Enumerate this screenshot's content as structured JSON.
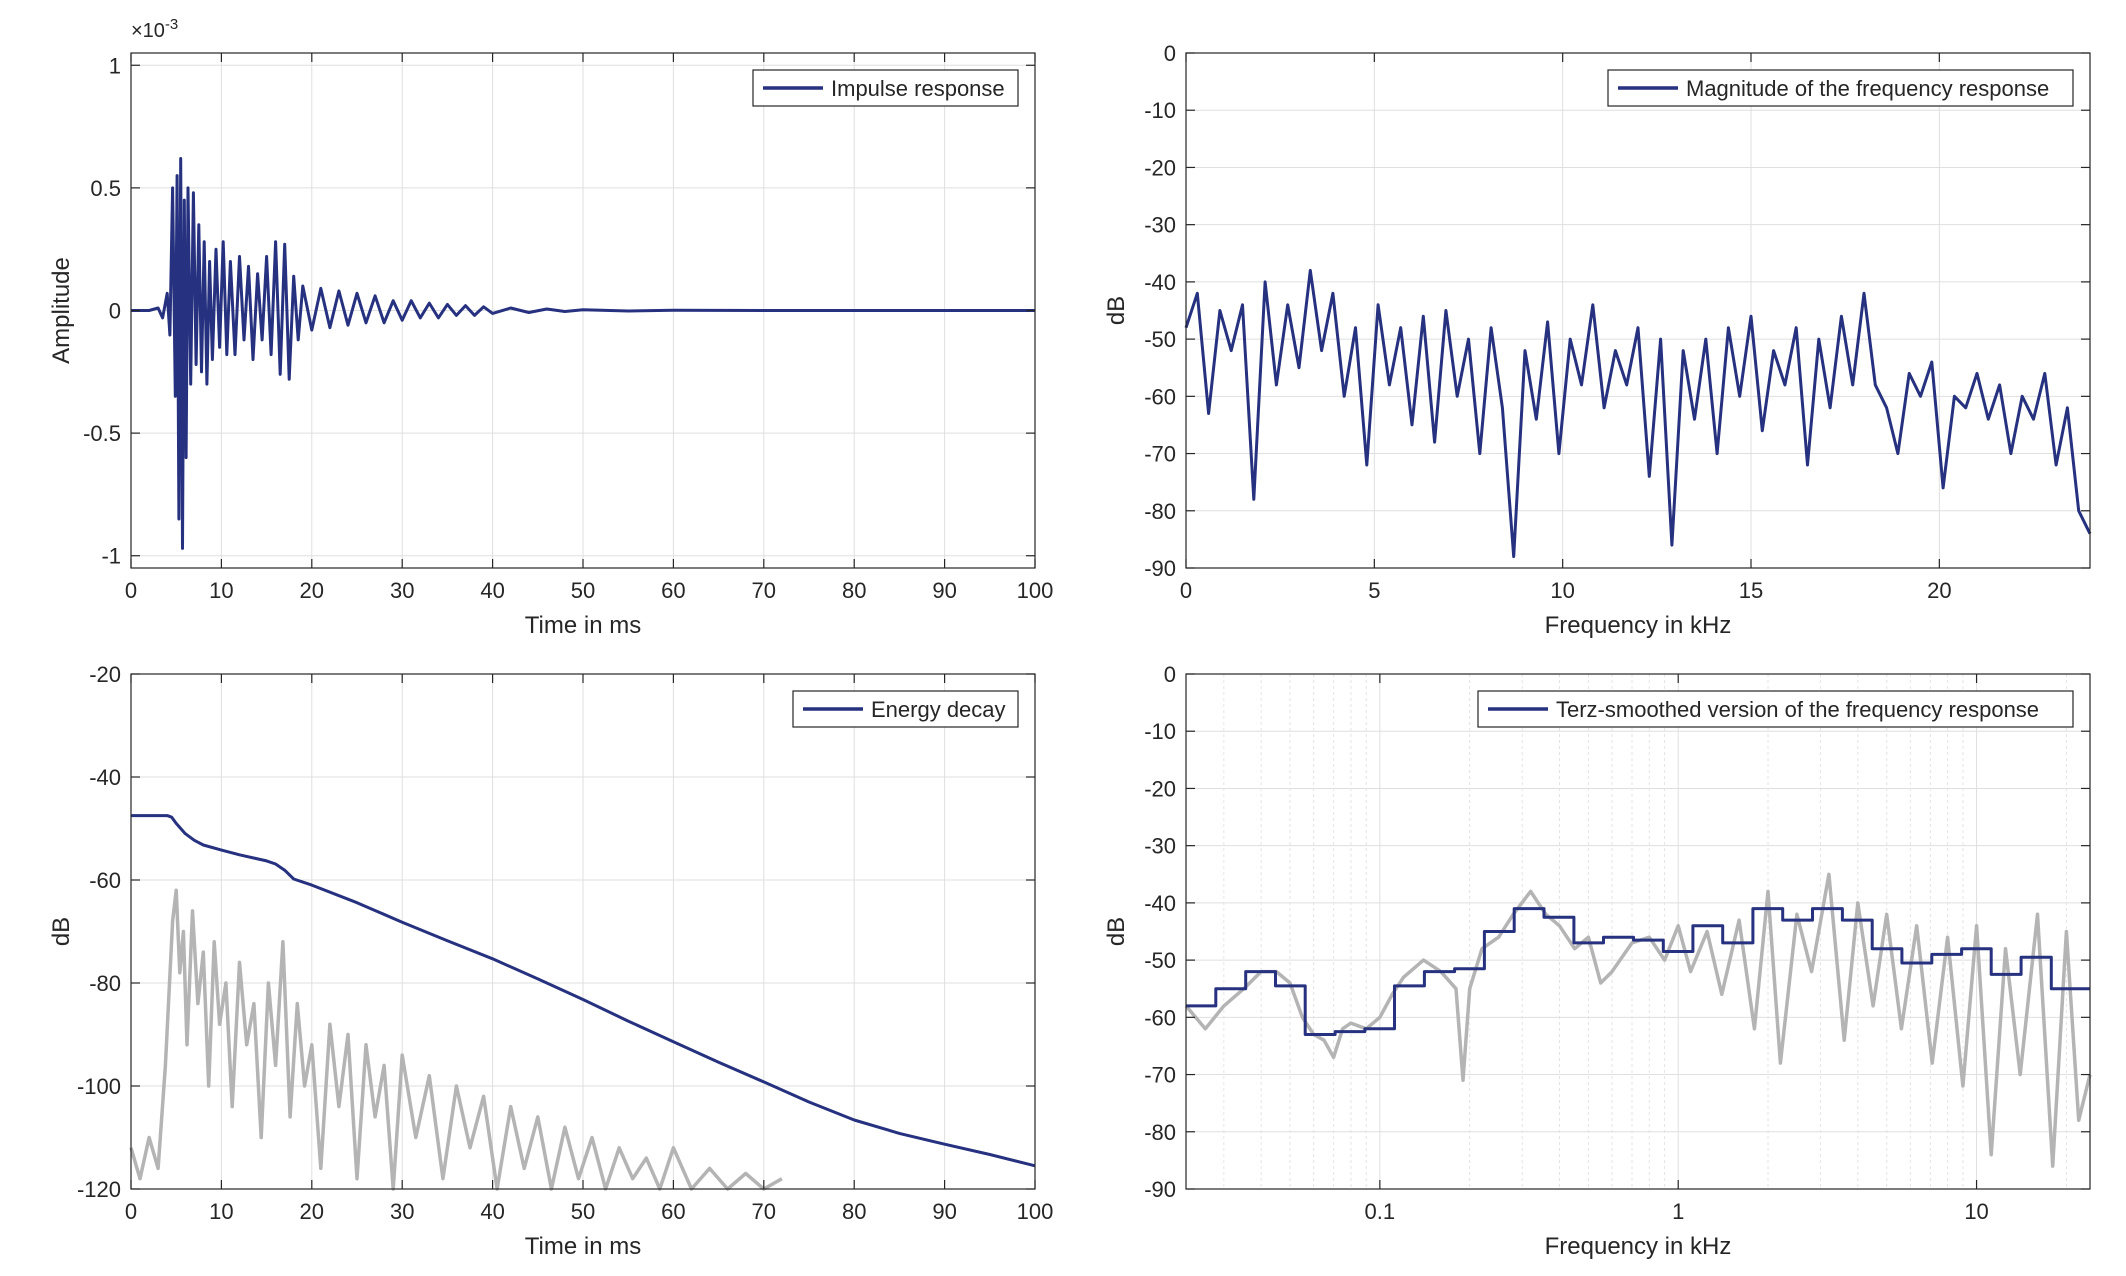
{
  "chart_data": [
    {
      "id": "impulse",
      "type": "line",
      "xlabel": "Time in ms",
      "ylabel": "Amplitude",
      "exponent_label": "×10",
      "exponent_power": "-3",
      "xlim": [
        0,
        100
      ],
      "ylim": [
        -1.05,
        1.05
      ],
      "xticks": [
        0,
        10,
        20,
        30,
        40,
        50,
        60,
        70,
        80,
        90,
        100
      ],
      "xtick_labels": [
        "0",
        "10",
        "20",
        "30",
        "40",
        "50",
        "60",
        "70",
        "80",
        "90",
        "100"
      ],
      "yticks": [
        1,
        0.5,
        0,
        -0.5,
        -1
      ],
      "ytick_labels": [
        "1",
        "0.5",
        "0",
        "-0.5",
        "-1"
      ],
      "grid": true,
      "legend_position": "top-right",
      "series": [
        {
          "name": "Impulse response",
          "color": "#26317f",
          "x": [
            0,
            1,
            2,
            3,
            3.5,
            4,
            4.3,
            4.6,
            4.9,
            5.1,
            5.3,
            5.5,
            5.7,
            5.9,
            6.1,
            6.3,
            6.6,
            6.9,
            7.2,
            7.5,
            7.8,
            8.1,
            8.4,
            8.7,
            9.0,
            9.4,
            9.8,
            10.2,
            10.6,
            11.0,
            11.5,
            12.0,
            12.5,
            13.0,
            13.5,
            14.0,
            14.5,
            15.0,
            15.5,
            16.0,
            16.5,
            17.0,
            17.5,
            18.0,
            18.5,
            19.0,
            20.0,
            21.0,
            22.0,
            23.0,
            24.0,
            25.0,
            26.0,
            27.0,
            28.0,
            29.0,
            30.0,
            31.0,
            32.0,
            33.0,
            34.0,
            35.0,
            36.0,
            37.0,
            38.0,
            39.0,
            40.0,
            42.0,
            44.0,
            46.0,
            48.0,
            50.0,
            55.0,
            60.0,
            70.0,
            80.0,
            90.0,
            100.0
          ],
          "y": [
            0,
            0,
            0,
            0.01,
            -0.03,
            0.07,
            -0.1,
            0.5,
            -0.35,
            0.55,
            -0.85,
            0.62,
            -0.97,
            0.45,
            -0.6,
            0.5,
            -0.3,
            0.48,
            -0.22,
            0.35,
            -0.25,
            0.28,
            -0.3,
            0.2,
            -0.2,
            0.25,
            -0.15,
            0.28,
            -0.18,
            0.2,
            -0.18,
            0.22,
            -0.12,
            0.18,
            -0.2,
            0.15,
            -0.12,
            0.22,
            -0.18,
            0.28,
            -0.26,
            0.27,
            -0.28,
            0.14,
            -0.12,
            0.1,
            -0.08,
            0.09,
            -0.07,
            0.08,
            -0.06,
            0.07,
            -0.05,
            0.06,
            -0.05,
            0.04,
            -0.04,
            0.04,
            -0.03,
            0.03,
            -0.03,
            0.025,
            -0.02,
            0.02,
            -0.02,
            0.015,
            -0.012,
            0.01,
            -0.008,
            0.006,
            -0.004,
            0.003,
            -0.002,
            0.001,
            0,
            0,
            0,
            0
          ]
        }
      ]
    },
    {
      "id": "magnitude",
      "type": "line",
      "xlabel": "Frequency in kHz",
      "ylabel": "dB",
      "xlim": [
        0,
        24
      ],
      "ylim": [
        -90,
        0
      ],
      "xticks": [
        0,
        5,
        10,
        15,
        20
      ],
      "xtick_labels": [
        "0",
        "5",
        "10",
        "15",
        "20"
      ],
      "yticks": [
        0,
        -10,
        -20,
        -30,
        -40,
        -50,
        -60,
        -70,
        -80,
        -90
      ],
      "ytick_labels": [
        "0",
        "-10",
        "-20",
        "-30",
        "-40",
        "-50",
        "-60",
        "-70",
        "-80",
        "-90"
      ],
      "grid": true,
      "legend_position": "top-right",
      "series": [
        {
          "name": "Magnitude of the frequency response",
          "color": "#26317f",
          "x": [
            0.0,
            0.3,
            0.6,
            0.9,
            1.2,
            1.5,
            1.8,
            2.1,
            2.4,
            2.7,
            3.0,
            3.3,
            3.6,
            3.9,
            4.2,
            4.5,
            4.8,
            5.1,
            5.4,
            5.7,
            6.0,
            6.3,
            6.6,
            6.9,
            7.2,
            7.5,
            7.8,
            8.1,
            8.4,
            8.7,
            9.0,
            9.3,
            9.6,
            9.9,
            10.2,
            10.5,
            10.8,
            11.1,
            11.4,
            11.7,
            12.0,
            12.3,
            12.6,
            12.9,
            13.2,
            13.5,
            13.8,
            14.1,
            14.4,
            14.7,
            15.0,
            15.3,
            15.6,
            15.9,
            16.2,
            16.5,
            16.8,
            17.1,
            17.4,
            17.7,
            18.0,
            18.3,
            18.6,
            18.9,
            19.2,
            19.5,
            19.8,
            20.1,
            20.4,
            20.7,
            21.0,
            21.3,
            21.6,
            21.9,
            22.2,
            22.5,
            22.8,
            23.1,
            23.4,
            23.7,
            24.0
          ],
          "y": [
            -48,
            -42,
            -63,
            -45,
            -52,
            -44,
            -78,
            -40,
            -58,
            -44,
            -55,
            -38,
            -52,
            -42,
            -60,
            -48,
            -72,
            -44,
            -58,
            -48,
            -65,
            -46,
            -68,
            -45,
            -60,
            -50,
            -70,
            -48,
            -62,
            -88,
            -52,
            -64,
            -47,
            -70,
            -50,
            -58,
            -44,
            -62,
            -52,
            -58,
            -48,
            -74,
            -50,
            -86,
            -52,
            -64,
            -50,
            -70,
            -48,
            -60,
            -46,
            -66,
            -52,
            -58,
            -48,
            -72,
            -50,
            -62,
            -46,
            -58,
            -42,
            -58,
            -62,
            -70,
            -56,
            -60,
            -54,
            -76,
            -60,
            -62,
            -56,
            -64,
            -58,
            -70,
            -60,
            -64,
            -56,
            -72,
            -62,
            -80,
            -84
          ]
        }
      ]
    },
    {
      "id": "decay",
      "type": "line",
      "xlabel": "Time in ms",
      "ylabel": "dB",
      "xlim": [
        0,
        100
      ],
      "ylim": [
        -120,
        -20
      ],
      "xticks": [
        0,
        10,
        20,
        30,
        40,
        50,
        60,
        70,
        80,
        90,
        100
      ],
      "xtick_labels": [
        "0",
        "10",
        "20",
        "30",
        "40",
        "50",
        "60",
        "70",
        "80",
        "90",
        "100"
      ],
      "yticks": [
        -20,
        -40,
        -60,
        -80,
        -100,
        -120
      ],
      "ytick_labels": [
        "-20",
        "-40",
        "-60",
        "-80",
        "-100",
        "-120"
      ],
      "grid": true,
      "legend_position": "top-right",
      "series": [
        {
          "color": "#b4b4b4",
          "x": [
            0,
            1,
            2,
            3,
            3.8,
            4.2,
            4.6,
            5.0,
            5.4,
            5.8,
            6.2,
            6.8,
            7.4,
            8.0,
            8.6,
            9.2,
            9.8,
            10.5,
            11.2,
            12.0,
            12.8,
            13.6,
            14.4,
            15.2,
            16.0,
            16.8,
            17.6,
            18.4,
            19.2,
            20.0,
            21.0,
            22.0,
            23.0,
            24.0,
            25.0,
            26.0,
            27.0,
            28.0,
            29.0,
            30.0,
            31.5,
            33.0,
            34.5,
            36.0,
            37.5,
            39.0,
            40.5,
            42.0,
            43.5,
            45.0,
            46.5,
            48.0,
            49.5,
            51.0,
            52.5,
            54.0,
            55.5,
            57.0,
            58.5,
            60.0,
            62.0,
            64.0,
            66.0,
            68.0,
            70.0,
            72.0
          ],
          "y": [
            -112,
            -118,
            -110,
            -116,
            -96,
            -82,
            -68,
            -62,
            -78,
            -70,
            -92,
            -66,
            -84,
            -74,
            -100,
            -72,
            -88,
            -80,
            -104,
            -76,
            -92,
            -84,
            -110,
            -80,
            -96,
            -72,
            -106,
            -84,
            -100,
            -92,
            -116,
            -88,
            -104,
            -90,
            -118,
            -92,
            -106,
            -96,
            -120,
            -94,
            -110,
            -98,
            -118,
            -100,
            -112,
            -102,
            -120,
            -104,
            -116,
            -106,
            -120,
            -108,
            -118,
            -110,
            -120,
            -112,
            -118,
            -114,
            -120,
            -112,
            -120,
            -116,
            -120,
            -117,
            -120,
            -118
          ]
        },
        {
          "name": "Energy decay",
          "color": "#26317f",
          "x": [
            0,
            2,
            4,
            4.5,
            5,
            6,
            7,
            8,
            10,
            12,
            14,
            15,
            16,
            17,
            18,
            20,
            25,
            30,
            35,
            40,
            45,
            50,
            55,
            60,
            65,
            70,
            75,
            80,
            85,
            90,
            95,
            100
          ],
          "y": [
            -47.5,
            -47.5,
            -47.5,
            -47.8,
            -49,
            -51,
            -52.3,
            -53.2,
            -54.2,
            -55.1,
            -55.9,
            -56.3,
            -56.9,
            -58.1,
            -59.8,
            -61,
            -64.4,
            -68.2,
            -71.8,
            -75.3,
            -79.2,
            -83.2,
            -87.4,
            -91.4,
            -95.4,
            -99.2,
            -103.1,
            -106.6,
            -109.2,
            -111.3,
            -113.3,
            -115.5
          ]
        }
      ]
    },
    {
      "id": "terz",
      "type": "line",
      "xlabel": "Frequency in kHz",
      "ylabel": "dB",
      "xscale": "log",
      "xlim": [
        0.0224,
        24
      ],
      "ylim": [
        -90,
        0
      ],
      "xticks": [
        0.1,
        1,
        10
      ],
      "xtick_labels": [
        "0.1",
        "1",
        "10"
      ],
      "yticks": [
        0,
        -10,
        -20,
        -30,
        -40,
        -50,
        -60,
        -70,
        -80,
        -90
      ],
      "ytick_labels": [
        "0",
        "-10",
        "-20",
        "-30",
        "-40",
        "-50",
        "-60",
        "-70",
        "-80",
        "-90"
      ],
      "grid": true,
      "legend_position": "top-right",
      "series": [
        {
          "color": "#b4b4b4",
          "x": [
            0.0224,
            0.026,
            0.03,
            0.035,
            0.04,
            0.045,
            0.05,
            0.055,
            0.06,
            0.065,
            0.07,
            0.075,
            0.08,
            0.09,
            0.1,
            0.11,
            0.12,
            0.14,
            0.16,
            0.18,
            0.19,
            0.2,
            0.22,
            0.25,
            0.28,
            0.32,
            0.36,
            0.4,
            0.45,
            0.5,
            0.55,
            0.6,
            0.7,
            0.8,
            0.9,
            1.0,
            1.1,
            1.25,
            1.4,
            1.6,
            1.8,
            2.0,
            2.2,
            2.5,
            2.8,
            3.2,
            3.6,
            4.0,
            4.5,
            5.0,
            5.6,
            6.3,
            7.1,
            8.0,
            9.0,
            10.0,
            11.2,
            12.5,
            14.0,
            16.0,
            18.0,
            20.0,
            22.0,
            24.0
          ],
          "y": [
            -58,
            -62,
            -58,
            -55,
            -52,
            -52,
            -54,
            -60,
            -63,
            -64,
            -67,
            -62,
            -61,
            -62,
            -60,
            -56,
            -53,
            -50,
            -52,
            -55,
            -71,
            -55,
            -48,
            -46,
            -42,
            -38,
            -42,
            -44,
            -48,
            -46,
            -54,
            -52,
            -47,
            -46,
            -50,
            -44,
            -52,
            -45,
            -56,
            -43,
            -62,
            -38,
            -68,
            -42,
            -52,
            -35,
            -64,
            -40,
            -58,
            -42,
            -62,
            -44,
            -68,
            -46,
            -72,
            -44,
            -84,
            -48,
            -70,
            -42,
            -86,
            -45,
            -78,
            -70
          ]
        },
        {
          "name": "Terz-smoothed version of the frequency response",
          "color": "#26317f",
          "x": [
            0.0224,
            0.0282,
            0.0282,
            0.0355,
            0.0355,
            0.0447,
            0.0447,
            0.0562,
            0.0562,
            0.0708,
            0.0708,
            0.0891,
            0.0891,
            0.112,
            0.112,
            0.141,
            0.141,
            0.178,
            0.178,
            0.224,
            0.224,
            0.282,
            0.282,
            0.355,
            0.355,
            0.447,
            0.447,
            0.562,
            0.562,
            0.708,
            0.708,
            0.891,
            0.891,
            1.12,
            1.12,
            1.41,
            1.41,
            1.78,
            1.78,
            2.24,
            2.24,
            2.82,
            2.82,
            3.55,
            3.55,
            4.47,
            4.47,
            5.62,
            5.62,
            7.08,
            7.08,
            8.91,
            8.91,
            11.2,
            11.2,
            14.1,
            14.1,
            17.8,
            17.8,
            24
          ],
          "y": [
            -58,
            -58,
            -55,
            -55,
            -52,
            -52,
            -54.5,
            -54.5,
            -63,
            -63,
            -62.5,
            -62.5,
            -62,
            -62,
            -54.5,
            -54.5,
            -52,
            -52,
            -51.5,
            -51.5,
            -45,
            -45,
            -41,
            -41,
            -42.5,
            -42.5,
            -47,
            -47,
            -46,
            -46,
            -46.5,
            -46.5,
            -48.5,
            -48.5,
            -44,
            -44,
            -47,
            -47,
            -41,
            -41,
            -43,
            -43,
            -41,
            -41,
            -43,
            -43,
            -48,
            -48,
            -50.5,
            -50.5,
            -49,
            -49,
            -48,
            -48,
            -52.5,
            -52.5,
            -49.5,
            -49.5,
            -55,
            -55
          ]
        }
      ]
    }
  ]
}
